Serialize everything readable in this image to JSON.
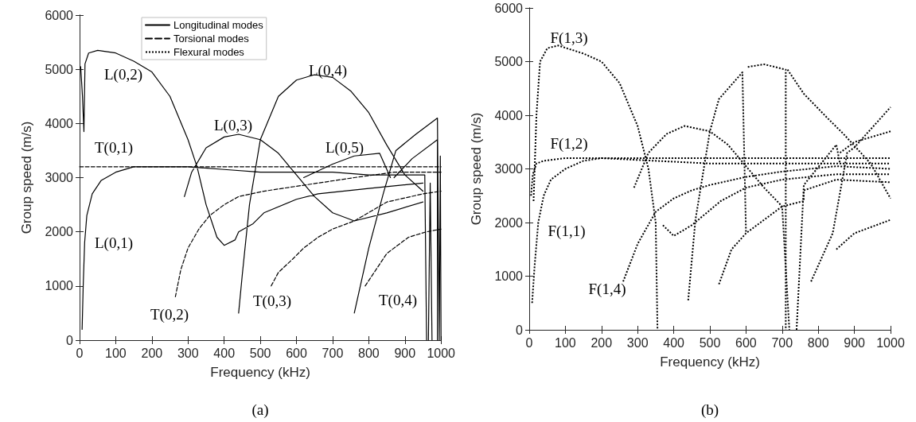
{
  "chart_data": [
    {
      "type": "line",
      "xlabel": "Frequency (kHz)",
      "ylabel": "Group speed (m/s)",
      "xlim": [
        0,
        1000
      ],
      "ylim": [
        0,
        6000
      ],
      "xticks": [
        0,
        100,
        200,
        300,
        400,
        500,
        600,
        700,
        800,
        900,
        1000
      ],
      "yticks": [
        0,
        1000,
        2000,
        3000,
        4000,
        5000,
        6000
      ],
      "legend": "top",
      "grid": false,
      "series": [
        {
          "name": "Longitudinal modes",
          "color": "#000000",
          "line_style": "solid",
          "x": [
            7,
            10,
            14,
            20,
            35,
            60,
            100,
            150,
            200,
            250,
            300,
            400,
            500,
            600,
            700,
            800,
            955,
            960,
            null,
            3,
            8,
            12,
            15,
            25,
            50,
            100,
            150,
            200,
            250,
            300,
            325,
            350,
            380,
            400,
            430,
            440,
            480,
            510,
            600,
            660,
            800,
            950,
            null,
            290,
            310,
            350,
            400,
            440,
            500,
            550,
            600,
            650,
            700,
            760,
            850,
            950,
            null,
            440,
            450,
            470,
            500,
            550,
            600,
            650,
            700,
            750,
            800,
            850,
            900,
            950,
            null,
            620,
            700,
            760,
            830,
            860,
            null,
            870,
            920,
            990,
            990,
            null,
            760,
            800,
            840,
            875,
            930,
            990,
            995,
            null,
            965,
            970,
            975,
            null,
            995,
            998,
            1000
          ],
          "values": [
            200,
            1000,
            1800,
            2300,
            2700,
            2950,
            3100,
            3200,
            3200,
            3200,
            3200,
            3150,
            3100,
            3100,
            3100,
            3050,
            3050,
            0,
            null,
            5050,
            4500,
            3850,
            5100,
            5300,
            5350,
            5300,
            5150,
            4950,
            4500,
            3700,
            3200,
            2500,
            1900,
            1750,
            1850,
            2000,
            2150,
            2350,
            2600,
            2700,
            2800,
            2900,
            null,
            2650,
            3100,
            3550,
            3750,
            3800,
            3700,
            3450,
            3050,
            2650,
            2350,
            2200,
            2350,
            2550,
            null,
            500,
            1200,
            2500,
            3700,
            4500,
            4800,
            4900,
            4850,
            4600,
            4200,
            3600,
            3050,
            2750,
            null,
            3000,
            3250,
            3400,
            3450,
            3000,
            null,
            3000,
            3350,
            3700,
            0,
            null,
            500,
            1700,
            2700,
            3500,
            3800,
            4100,
            0,
            null,
            0,
            2900,
            0,
            null,
            0,
            3400,
            0
          ]
        },
        {
          "name": "Torsional modes",
          "color": "#000000",
          "line_style": "dashed",
          "x": [
            0,
            1000,
            null,
            265,
            280,
            300,
            330,
            360,
            400,
            440,
            510,
            660,
            760,
            870,
            1000,
            null,
            530,
            550,
            590,
            620,
            660,
            700,
            760,
            850,
            950,
            1000,
            null,
            790,
            820,
            850,
            910,
            960,
            1000
          ],
          "values": [
            3200,
            3200,
            null,
            800,
            1300,
            1700,
            2050,
            2300,
            2500,
            2650,
            2750,
            2900,
            3000,
            3100,
            3100,
            null,
            1000,
            1250,
            1500,
            1700,
            1900,
            2050,
            2200,
            2550,
            2700,
            2750,
            null,
            1000,
            1300,
            1600,
            1900,
            2000,
            2050
          ]
        },
        {
          "name": "Flexural modes",
          "color": "#000000",
          "line_style": "dotted"
        }
      ],
      "annotations": [
        "L(0,2)",
        "T(0,1)",
        "L(0,1)",
        "L(0,3)",
        "T(0,2)",
        "L(0,4)",
        "L(0,5)",
        "T(0,3)",
        "T(0,4)",
        "(a)"
      ]
    },
    {
      "type": "line",
      "xlabel": "Frequency (kHz)",
      "ylabel": "Group speed (m/s)",
      "xlim": [
        0,
        1000
      ],
      "ylim": [
        0,
        6000
      ],
      "xticks": [
        0,
        100,
        200,
        300,
        400,
        500,
        600,
        700,
        800,
        900,
        1000
      ],
      "yticks": [
        0,
        1000,
        2000,
        3000,
        4000,
        5000,
        6000
      ],
      "grid": false,
      "series": [
        {
          "color": "#000000",
          "line_style": "dotted",
          "x": [
            5,
            10,
            20,
            40,
            100,
            300,
            600,
            1000
          ],
          "values": [
            2500,
            2900,
            3100,
            3150,
            3200,
            3200,
            3200,
            3200
          ]
        },
        {
          "color": "#000000",
          "line_style": "dotted",
          "x": [
            8,
            15,
            25,
            40,
            60,
            100,
            150,
            200,
            500,
            1000
          ],
          "values": [
            500,
            1200,
            2000,
            2500,
            2800,
            3000,
            3150,
            3200,
            3100,
            3100
          ]
        },
        {
          "color": "#000000",
          "line_style": "dotted",
          "x": [
            12,
            20,
            30,
            50,
            80,
            150,
            200,
            250,
            300,
            330,
            350,
            355
          ],
          "values": [
            2400,
            4000,
            5000,
            5250,
            5300,
            5150,
            5000,
            4600,
            3800,
            3000,
            2000,
            0
          ]
        },
        {
          "color": "#000000",
          "line_style": "dotted",
          "x": [
            260,
            300,
            350,
            400,
            450,
            500,
            600,
            700,
            850,
            1000
          ],
          "values": [
            900,
            1600,
            2200,
            2450,
            2600,
            2700,
            2850,
            2950,
            3050,
            3000
          ]
        },
        {
          "color": "#000000",
          "line_style": "dotted",
          "x": [
            290,
            330,
            380,
            430,
            500,
            550,
            600,
            650,
            700,
            720
          ],
          "values": [
            2650,
            3300,
            3650,
            3800,
            3700,
            3450,
            3050,
            2650,
            2300,
            0
          ]
        },
        {
          "color": "#000000",
          "line_style": "dotted",
          "x": [
            370,
            400,
            450,
            530,
            600,
            700,
            850,
            1000
          ],
          "values": [
            1950,
            1750,
            1950,
            2400,
            2650,
            2800,
            2900,
            2900
          ]
        },
        {
          "color": "#000000",
          "line_style": "dotted",
          "x": [
            440,
            460,
            500,
            525,
            590,
            600
          ],
          "values": [
            550,
            2050,
            3700,
            4300,
            4800,
            1800
          ]
        },
        {
          "color": "#000000",
          "line_style": "dotted",
          "x": [
            605,
            650,
            710,
            710
          ],
          "values": [
            4900,
            4950,
            4850,
            0
          ]
        },
        {
          "color": "#000000",
          "line_style": "dotted",
          "x": [
            715,
            760,
            825,
            870,
            945,
            1000
          ],
          "values": [
            4850,
            4400,
            3950,
            3650,
            3100,
            2450
          ]
        },
        {
          "color": "#000000",
          "line_style": "dotted",
          "x": [
            525,
            560,
            600,
            700,
            760,
            760,
            850,
            1000
          ],
          "values": [
            850,
            1500,
            1800,
            2300,
            2400,
            2600,
            2800,
            2750
          ]
        },
        {
          "color": "#000000",
          "line_style": "dotted",
          "x": [
            780,
            840,
            880,
            900,
            1000
          ],
          "values": [
            900,
            1800,
            3300,
            3400,
            4150
          ]
        },
        {
          "color": "#000000",
          "line_style": "dotted",
          "x": [
            850,
            900,
            1000
          ],
          "values": [
            1500,
            1800,
            2050
          ]
        },
        {
          "color": "#000000",
          "line_style": "dotted",
          "x": [
            860,
            900,
            1000
          ],
          "values": [
            3300,
            3500,
            3700
          ]
        },
        {
          "color": "#000000",
          "line_style": "dotted",
          "x": [
            740,
            760,
            850,
            860
          ],
          "values": [
            0,
            2700,
            3450,
            3100
          ]
        }
      ],
      "annotations": [
        "F(1,3)",
        "F(1,2)",
        "F(1,1)",
        "F(1,4)",
        "(b)"
      ]
    }
  ]
}
